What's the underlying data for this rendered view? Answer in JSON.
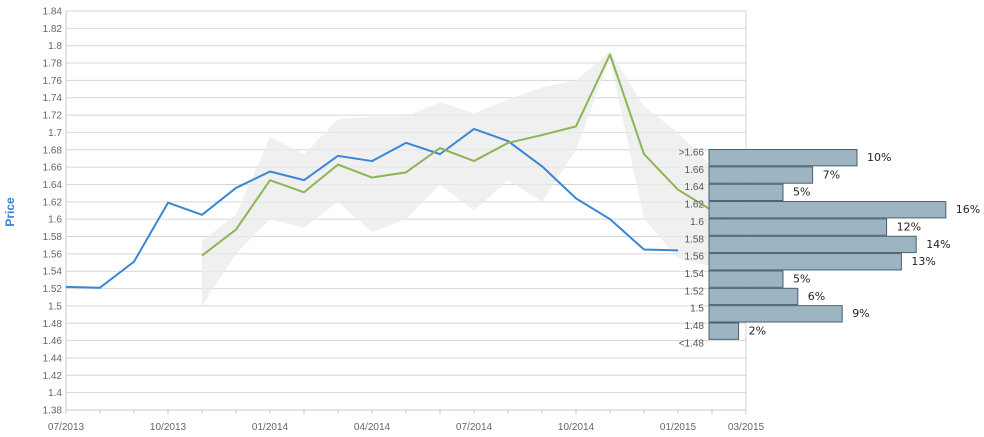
{
  "chart_data": [
    {
      "type": "line",
      "title": "",
      "xlabel": "",
      "ylabel": "Price",
      "ylim": [
        1.38,
        1.84
      ],
      "yticks": [
        "1.38",
        "1.4",
        "1.42",
        "1.44",
        "1.46",
        "1.48",
        "1.5",
        "1.52",
        "1.54",
        "1.56",
        "1.58",
        "1.6",
        "1.62",
        "1.64",
        "1.66",
        "1.68",
        "1.7",
        "1.72",
        "1.74",
        "1.76",
        "1.78",
        "1.8",
        "1.82",
        "1.84"
      ],
      "xticks": [
        "07/2013",
        "10/2013",
        "01/2014",
        "04/2014",
        "07/2014",
        "10/2014",
        "01/2015",
        "03/2015"
      ],
      "x_months": [
        "2013-07",
        "2013-08",
        "2013-09",
        "2013-10",
        "2013-11",
        "2013-12",
        "2014-01",
        "2014-02",
        "2014-03",
        "2014-04",
        "2014-05",
        "2014-06",
        "2014-07",
        "2014-08",
        "2014-09",
        "2014-10",
        "2014-11",
        "2014-12",
        "2015-01",
        "2015-02",
        "2015-03"
      ],
      "grid": true,
      "series": [
        {
          "color": "#3a87d4",
          "values": [
            1.522,
            1.521,
            1.551,
            1.619,
            1.605,
            1.636,
            1.655,
            1.645,
            1.673,
            1.667,
            1.688,
            1.675,
            1.704,
            1.69,
            1.661,
            1.624,
            1.6,
            1.565,
            1.564,
            null,
            null
          ]
        },
        {
          "color": "#8db554",
          "values": [
            null,
            null,
            null,
            null,
            1.558,
            1.588,
            1.645,
            1.631,
            1.663,
            1.648,
            1.654,
            1.682,
            1.667,
            1.688,
            1.697,
            1.707,
            1.79,
            1.675,
            1.634,
            1.61,
            1.582
          ]
        }
      ],
      "band": {
        "color": "#ebebeb",
        "upper": [
          null,
          null,
          null,
          null,
          1.575,
          1.605,
          1.695,
          1.675,
          1.715,
          1.718,
          1.718,
          1.735,
          1.722,
          1.738,
          1.752,
          1.76,
          1.793,
          1.73,
          1.7,
          1.66,
          1.62
        ],
        "lower": [
          null,
          null,
          null,
          null,
          1.5,
          1.56,
          1.6,
          1.59,
          1.62,
          1.585,
          1.6,
          1.64,
          1.61,
          1.645,
          1.62,
          1.68,
          1.785,
          1.6,
          1.555,
          1.545,
          1.54
        ]
      }
    },
    {
      "type": "bar",
      "orientation": "horizontal",
      "color": "#9db4c3",
      "categories": [
        ">1.66",
        "1.66",
        "1.64",
        "1.62",
        "1.6",
        "1.58",
        "1.56",
        "1.54",
        "1.52",
        "1.5",
        "1.48",
        "<1.48"
      ],
      "values": [
        10,
        7,
        5,
        16,
        12,
        14,
        13,
        5,
        6,
        9,
        2,
        null
      ],
      "labels": [
        "10%",
        "7%",
        "5%",
        "16%",
        "12%",
        "14%",
        "13%",
        "5%",
        "6%",
        "9%",
        "2%",
        ""
      ]
    }
  ]
}
